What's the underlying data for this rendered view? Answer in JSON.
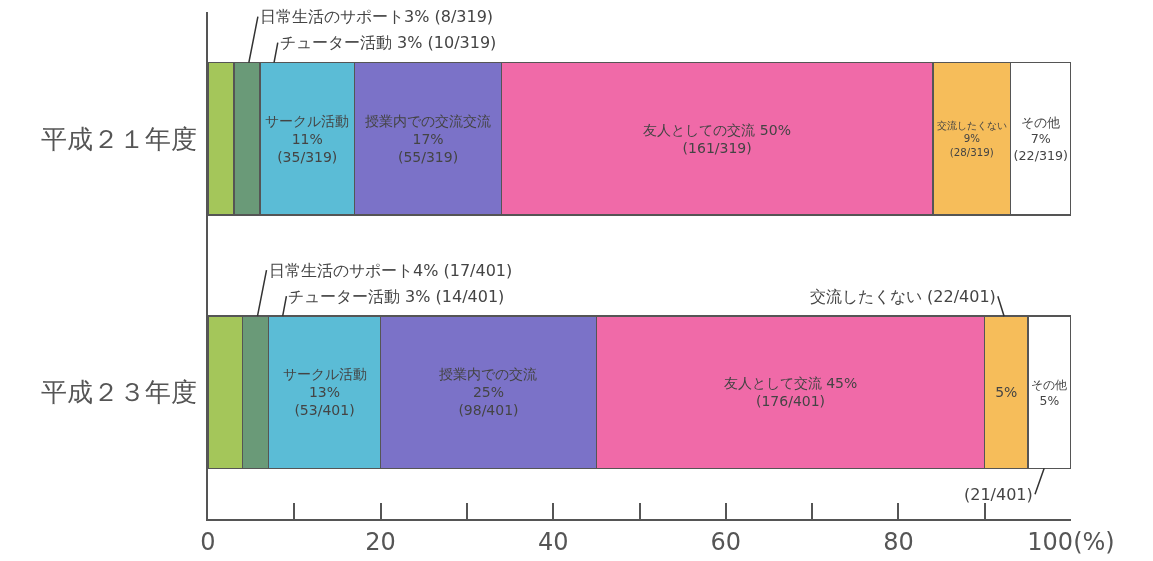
{
  "chart_data": {
    "type": "bar",
    "orientation": "horizontal",
    "stacked": true,
    "categories": [
      "平成２１年度",
      "平成２３年度"
    ],
    "xlim": [
      0,
      100
    ],
    "xticks": [
      0,
      {
        "value": 10,
        "label": null
      },
      20,
      {
        "value": 30,
        "label": null
      },
      40,
      {
        "value": 50,
        "label": null
      },
      60,
      {
        "value": 70,
        "label": null
      },
      80,
      {
        "value": 90,
        "label": null
      },
      {
        "value": 100,
        "label": "100(%)"
      }
    ],
    "grid": false,
    "series": [
      {
        "color": "#a4c65a",
        "values": [
          3,
          4
        ],
        "value_labels": [
          null,
          null
        ]
      },
      {
        "color": "#6a9a78",
        "values": [
          3,
          3
        ],
        "value_labels": [
          null,
          null
        ]
      },
      {
        "color": "#5bbcd6",
        "values": [
          11,
          13
        ],
        "value_labels": [
          "サークル活動\n11%\n(35/319)",
          "サークル活動\n13%\n(53/401)"
        ]
      },
      {
        "color": "#7b72c8",
        "values": [
          17,
          25
        ],
        "value_labels": [
          "授業内での交流交流\n17%\n(55/319)",
          "授業内での交流\n25%\n(98/401)"
        ]
      },
      {
        "color": "#f06aa8",
        "values": [
          50,
          45
        ],
        "value_labels": [
          "友人としての交流 50%\n(161/319)",
          "友人として交流 45%\n(176/401)"
        ]
      },
      {
        "color": "#f6bd5a",
        "values": [
          9,
          5
        ],
        "value_labels": [
          "交流したくない\n9%\n(28/319)",
          "5%"
        ]
      },
      {
        "color": "#ffffff",
        "values": [
          7,
          5
        ],
        "value_labels": [
          "その他\n7%\n(22/319)",
          "その他\n5%"
        ]
      }
    ],
    "annotations": [
      {
        "text": "日常生活のサポート3% (8/319)",
        "x": 3,
        "y": "平成２１年度"
      },
      {
        "text": "チューター活動 3% (10/319)",
        "x": 6,
        "y": "平成２１年度"
      },
      {
        "text": "日常生活のサポート4% (17/401)",
        "x": 4,
        "y": "平成２３年度"
      },
      {
        "text": "チューター活動 3% (14/401)",
        "x": 7,
        "y": "平成２３年度"
      },
      {
        "text": "交流したくない (22/401)",
        "x": 95,
        "y": "平成２３年度"
      },
      {
        "text": "(21/401)",
        "x": 100,
        "y": "平成２３年度"
      }
    ]
  }
}
